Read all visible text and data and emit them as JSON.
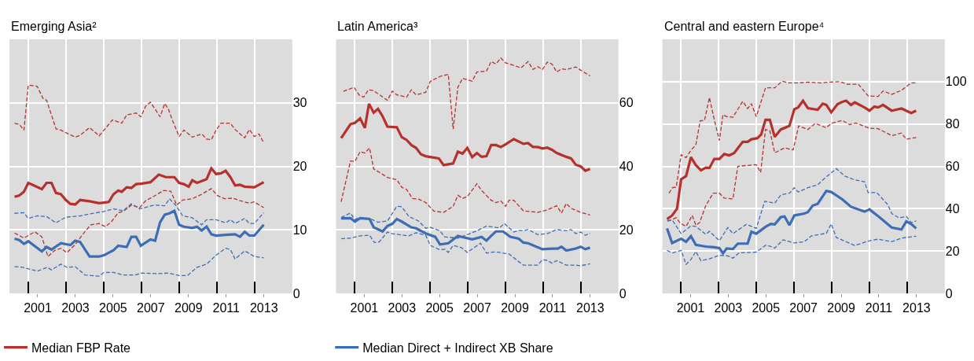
{
  "chart_data": [
    {
      "type": "line",
      "title": "Emerging Asia²",
      "xlim": [
        2000,
        2015
      ],
      "ylim": [
        0,
        40
      ],
      "xticks": [
        {
          "value": 2001,
          "label": null
        },
        {
          "value": 2003,
          "label": null
        },
        {
          "value": 2005,
          "label": null
        },
        {
          "value": 2007,
          "label": null
        },
        {
          "value": 2009,
          "label": null
        },
        {
          "value": 2011,
          "label": null
        },
        {
          "value": 2013,
          "label": null
        },
        {
          "value": 2001.5,
          "label": "2001"
        },
        {
          "value": 2003.5,
          "label": "2003"
        },
        {
          "value": 2005.5,
          "label": "2005"
        },
        {
          "value": 2007.5,
          "label": "2007"
        },
        {
          "value": 2009.5,
          "label": "2009"
        },
        {
          "value": 2011.5,
          "label": "2011"
        },
        {
          "value": 2013.5,
          "label": "2013"
        }
      ],
      "yticks": [
        0,
        10,
        20,
        30
      ],
      "grid": true,
      "legend": "bottom",
      "series": [
        {
          "color": "#b7312c",
          "line_style": "dashed",
          "x": [
            2000.27,
            2000.52,
            2000.77,
            2001.0,
            2001.47,
            2001.78,
            2001.97,
            2002.47,
            2002.73,
            2002.99,
            2003.49,
            2003.75,
            2004.25,
            2004.76,
            2005.46,
            2005.96,
            2006.22,
            2006.72,
            2006.97,
            2007.23,
            2007.48,
            2007.73,
            2007.99,
            2008.24,
            2008.43,
            2008.68,
            2009.0,
            2009.25,
            2009.7,
            2010.2,
            2010.46,
            2010.71,
            2010.96,
            2011.22,
            2011.72,
            2011.97,
            2012.48,
            2012.73,
            2012.99,
            2013.24,
            2013.49
          ],
          "values": [
            26.8,
            26.6,
            25.7,
            32.8,
            32.6,
            30.7,
            30.4,
            25.9,
            25.7,
            25.3,
            24.6,
            24.9,
            26.1,
            24.8,
            27.3,
            26.8,
            28.1,
            28.4,
            27.8,
            29.5,
            30.1,
            29.0,
            27.8,
            29.9,
            29.0,
            27.0,
            24.7,
            25.7,
            24.6,
            25.1,
            24.3,
            24.2,
            25.7,
            26.8,
            26.8,
            25.8,
            24.5,
            25.8,
            24.7,
            25.1,
            23.7
          ]
        },
        {
          "color": "#b7312c",
          "line_style": "dashed",
          "x": [
            2000.27,
            2000.77,
            2001.34,
            2001.72,
            2002.04,
            2002.42,
            2002.73,
            2003.05,
            2003.49,
            2003.94,
            2004.32,
            2004.76,
            2005.08,
            2005.39,
            2005.77,
            2006.03,
            2006.47,
            2006.91,
            2007.23,
            2007.67,
            2008.18,
            2008.56,
            2008.87,
            2009.19,
            2009.7,
            2010.2,
            2010.71,
            2011.03,
            2011.41,
            2011.85,
            2012.23,
            2012.73,
            2012.99,
            2013.49
          ],
          "values": [
            9.5,
            8.7,
            9.7,
            8.9,
            5.8,
            6.8,
            7.1,
            6.4,
            7.7,
            9.5,
            10.8,
            11.0,
            10.5,
            11.2,
            12.7,
            12.9,
            13.9,
            13.5,
            14.6,
            15.3,
            16.2,
            16.1,
            13.9,
            14.7,
            14.9,
            15.6,
            16.5,
            15.4,
            14.9,
            15.0,
            14.6,
            14.2,
            14.4,
            13.5
          ]
        },
        {
          "color": "#3d6db5",
          "line_style": "dashed",
          "x": [
            2000.27,
            2000.77,
            2001.0,
            2001.47,
            2001.97,
            2002.47,
            2002.99,
            2003.75,
            2004.25,
            2005.01,
            2005.52,
            2006.03,
            2006.47,
            2006.91,
            2007.67,
            2008.24,
            2008.49,
            2008.87,
            2009.19,
            2009.7,
            2010.2,
            2010.46,
            2010.96,
            2011.47,
            2011.72,
            2011.97,
            2012.48,
            2012.73,
            2012.99,
            2013.49
          ],
          "values": [
            12.6,
            12.7,
            11.8,
            12.2,
            12.1,
            11.1,
            12.0,
            12.2,
            12.5,
            12.9,
            13.3,
            13.0,
            14.1,
            13.3,
            13.9,
            13.8,
            14.9,
            13.7,
            12.2,
            11.9,
            10.8,
            11.6,
            11.6,
            11.1,
            11.6,
            11.0,
            11.8,
            11.0,
            11.0,
            12.7
          ]
        },
        {
          "color": "#3d6db5",
          "line_style": "dashed",
          "x": [
            2000.27,
            2000.71,
            2001.47,
            2002.0,
            2002.23,
            2002.73,
            2003.05,
            2003.49,
            2004.0,
            2004.76,
            2005.01,
            2005.52,
            2006.03,
            2006.66,
            2007.04,
            2007.92,
            2008.43,
            2009.0,
            2009.44,
            2009.95,
            2010.46,
            2010.96,
            2011.47,
            2011.72,
            2011.97,
            2012.48,
            2012.99,
            2013.49
          ],
          "values": [
            4.2,
            4.1,
            3.5,
            4.1,
            3.7,
            4.6,
            4.1,
            4.2,
            2.9,
            2.7,
            3.3,
            3.3,
            2.9,
            2.9,
            3.2,
            3.1,
            3.2,
            2.8,
            2.8,
            4.1,
            4.6,
            6.0,
            7.1,
            6.9,
            5.4,
            6.7,
            5.8,
            5.6
          ]
        },
        {
          "name": "Median FBP Rate",
          "color": "#b7312c",
          "line_style": "solid",
          "x": [
            2000.27,
            2000.52,
            2000.77,
            2001.0,
            2001.72,
            2001.97,
            2002.23,
            2002.47,
            2002.73,
            2002.99,
            2003.23,
            2003.49,
            2003.75,
            2004.25,
            2004.76,
            2005.27,
            2005.52,
            2005.77,
            2005.96,
            2006.22,
            2006.47,
            2006.72,
            2007.04,
            2007.48,
            2007.92,
            2008.3,
            2008.75,
            2009.0,
            2009.25,
            2009.51,
            2009.7,
            2009.95,
            2010.46,
            2010.71,
            2010.96,
            2011.22,
            2011.47,
            2011.72,
            2011.97,
            2012.23,
            2012.48,
            2012.99,
            2013.49
          ],
          "values": [
            15.2,
            15.4,
            16.0,
            17.4,
            16.4,
            17.4,
            17.4,
            15.8,
            15.6,
            14.7,
            14.1,
            14.0,
            14.7,
            14.5,
            14.2,
            14.4,
            15.6,
            16.2,
            16.0,
            16.7,
            16.6,
            17.2,
            17.3,
            17.5,
            18.7,
            18.3,
            18.3,
            17.4,
            17.2,
            16.8,
            17.8,
            17.4,
            18.0,
            19.7,
            18.8,
            18.9,
            19.3,
            18.3,
            17.0,
            17.1,
            16.8,
            16.7,
            17.5
          ]
        },
        {
          "name": "Median Direct + Indirect XB Share",
          "color": "#3d6db5",
          "line_style": "solid",
          "x": [
            2000.27,
            2000.52,
            2000.77,
            2001.0,
            2001.72,
            2001.97,
            2002.23,
            2002.73,
            2003.23,
            2003.49,
            2003.75,
            2004.25,
            2004.76,
            2005.01,
            2005.52,
            2005.77,
            2006.22,
            2006.47,
            2006.72,
            2006.97,
            2007.48,
            2007.73,
            2007.99,
            2008.24,
            2008.49,
            2008.75,
            2009.0,
            2009.25,
            2009.7,
            2009.95,
            2010.2,
            2010.46,
            2010.71,
            2010.96,
            2011.47,
            2011.97,
            2012.23,
            2012.48,
            2012.73,
            2012.99,
            2013.49
          ],
          "values": [
            8.6,
            8.4,
            7.8,
            8.2,
            6.6,
            7.3,
            6.9,
            7.9,
            7.6,
            8.3,
            8.1,
            5.8,
            5.8,
            6.0,
            6.8,
            7.5,
            7.3,
            8.9,
            8.9,
            7.5,
            8.5,
            8.3,
            11.2,
            12.4,
            12.6,
            13.0,
            10.8,
            10.5,
            10.3,
            10.5,
            9.9,
            10.5,
            9.3,
            9.1,
            9.2,
            9.3,
            8.9,
            9.7,
            9.1,
            9.1,
            10.8
          ]
        }
      ]
    },
    {
      "type": "line",
      "title": "Latin America³",
      "xlim": [
        2000,
        2015
      ],
      "ylim": [
        0,
        80
      ],
      "xticks": [
        {
          "value": 2001,
          "label": null
        },
        {
          "value": 2003,
          "label": null
        },
        {
          "value": 2005,
          "label": null
        },
        {
          "value": 2007,
          "label": null
        },
        {
          "value": 2009,
          "label": null
        },
        {
          "value": 2011,
          "label": null
        },
        {
          "value": 2013,
          "label": null
        },
        {
          "value": 2001.5,
          "label": "2001"
        },
        {
          "value": 2003.5,
          "label": "2003"
        },
        {
          "value": 2005.5,
          "label": "2005"
        },
        {
          "value": 2007.5,
          "label": "2007"
        },
        {
          "value": 2009.5,
          "label": "2009"
        },
        {
          "value": 2011.5,
          "label": "2011"
        },
        {
          "value": 2013.5,
          "label": "2013"
        }
      ],
      "yticks": [
        0,
        20,
        40,
        60
      ],
      "grid": true,
      "series": [
        {
          "color": "#b7312c",
          "line_style": "dashed",
          "x": [
            2000.39,
            2000.96,
            2001.22,
            2001.47,
            2001.72,
            2001.97,
            2002.73,
            2002.99,
            2003.23,
            2003.75,
            2004.0,
            2004.25,
            2004.76,
            2005.01,
            2005.52,
            2005.96,
            2006.22,
            2006.47,
            2006.72,
            2007.23,
            2007.48,
            2007.99,
            2008.24,
            2008.49,
            2008.75,
            2009.0,
            2009.44,
            2009.82,
            2010.2,
            2010.46,
            2010.71,
            2010.96,
            2011.22,
            2011.47,
            2011.72,
            2011.97,
            2012.23,
            2012.73,
            2012.99,
            2013.49
          ],
          "values": [
            63.6,
            64.9,
            62.5,
            61.8,
            64.1,
            63.9,
            60.8,
            63.7,
            62.5,
            61.8,
            64.1,
            62.5,
            63.3,
            66.8,
            68.3,
            69.0,
            51.7,
            64.9,
            67.7,
            66.8,
            69.7,
            70.0,
            73.0,
            72.2,
            74.1,
            72.6,
            71.8,
            71.0,
            73.0,
            70.5,
            71.4,
            70.5,
            72.8,
            72.2,
            69.7,
            70.7,
            70.5,
            71.3,
            70.3,
            68.5
          ]
        },
        {
          "color": "#b7312c",
          "line_style": "dashed",
          "x": [
            2000.27,
            2000.77,
            2001.0,
            2001.28,
            2001.53,
            2001.78,
            2002.0,
            2002.47,
            2002.73,
            2003.23,
            2003.49,
            2003.75,
            2004.06,
            2004.38,
            2004.76,
            2005.2,
            2005.71,
            2006.22,
            2006.47,
            2006.72,
            2006.97,
            2007.48,
            2007.73,
            2008.24,
            2008.49,
            2008.75,
            2009.0,
            2009.19,
            2009.44,
            2009.95,
            2010.71,
            2011.22,
            2011.72,
            2011.97,
            2012.23,
            2012.48,
            2012.99,
            2013.49
          ],
          "values": [
            28.8,
            41.7,
            41.5,
            44.6,
            44.2,
            45.8,
            39.2,
            37.5,
            36.5,
            35.8,
            33.4,
            32.7,
            29.9,
            29.7,
            28.6,
            25.9,
            25.5,
            27.4,
            30.9,
            29.9,
            30.5,
            34.5,
            32.4,
            29.3,
            28.6,
            29.1,
            27.4,
            29.3,
            29.3,
            26.0,
            25.5,
            26.3,
            27.6,
            25.3,
            28.3,
            26.8,
            25.5,
            24.7
          ]
        },
        {
          "color": "#3d6db5",
          "line_style": "dashed",
          "x": [
            2000.27,
            2000.77,
            2001.0,
            2001.22,
            2001.78,
            2002.23,
            2002.73,
            2003.23,
            2003.49,
            2003.87,
            2004.38,
            2004.76,
            2005.01,
            2005.52,
            2005.77,
            2006.47,
            2006.97,
            2007.48,
            2007.99,
            2008.68,
            2008.94,
            2009.44,
            2009.7,
            2009.95,
            2010.2,
            2010.71,
            2011.22,
            2011.72,
            2012.23,
            2012.48,
            2012.73,
            2012.99,
            2013.24,
            2013.49
          ],
          "values": [
            23.9,
            25.3,
            23.2,
            23.9,
            23.6,
            22.4,
            22.8,
            27.4,
            27.3,
            24.2,
            22.8,
            20.5,
            20.8,
            19.7,
            17.8,
            17.4,
            18.5,
            19.7,
            21.2,
            20.6,
            22.0,
            19.3,
            19.8,
            19.8,
            20.1,
            18.5,
            18.8,
            20.1,
            19.7,
            20.1,
            18.8,
            19.3,
            18.3,
            18.9
          ]
        },
        {
          "color": "#3d6db5",
          "line_style": "dashed",
          "x": [
            2000.27,
            2000.77,
            2001.28,
            2001.78,
            2002.04,
            2002.29,
            2002.73,
            2002.99,
            2003.87,
            2004.25,
            2004.76,
            2005.01,
            2005.52,
            2005.77,
            2005.96,
            2006.22,
            2006.66,
            2006.97,
            2007.67,
            2007.99,
            2008.49,
            2008.94,
            2009.19,
            2009.7,
            2009.95,
            2010.71,
            2010.96,
            2011.22,
            2011.47,
            2011.72,
            2012.23,
            2012.73,
            2012.99,
            2013.49
          ],
          "values": [
            17.2,
            17.4,
            18.1,
            18.3,
            16.0,
            16.2,
            19.3,
            18.8,
            18.1,
            19.1,
            18.3,
            15.1,
            13.7,
            13.9,
            12.9,
            15.1,
            14.4,
            12.9,
            15.8,
            12.7,
            13.1,
            12.6,
            12.4,
            10.0,
            8.9,
            8.9,
            10.6,
            10.4,
            9.5,
            10.3,
            8.9,
            8.9,
            8.7,
            9.3
          ]
        },
        {
          "color": "#b7312c",
          "line_style": "solid",
          "x": [
            2000.27,
            2000.77,
            2001.0,
            2001.28,
            2001.53,
            2001.75,
            2002.0,
            2002.23,
            2002.47,
            2002.73,
            2003.23,
            2003.49,
            2003.75,
            2004.0,
            2004.25,
            2004.51,
            2004.76,
            2005.46,
            2005.71,
            2006.22,
            2006.47,
            2006.72,
            2006.97,
            2007.23,
            2007.48,
            2007.73,
            2007.99,
            2008.24,
            2008.49,
            2008.75,
            2009.0,
            2009.44,
            2009.95,
            2010.2,
            2010.46,
            2010.71,
            2010.96,
            2011.22,
            2011.47,
            2011.72,
            2012.23,
            2012.48,
            2012.73,
            2012.99,
            2013.24,
            2013.49
          ],
          "values": [
            48.9,
            53.3,
            53.7,
            55.1,
            52.1,
            59.7,
            56.9,
            58.1,
            55.8,
            52.5,
            52.3,
            49.2,
            48.3,
            46.7,
            45.8,
            43.8,
            43.2,
            42.5,
            40.4,
            40.9,
            44.6,
            44.0,
            45.8,
            42.9,
            44.2,
            43.0,
            43.2,
            46.7,
            46.7,
            46.1,
            46.9,
            48.6,
            47.1,
            47.3,
            46.1,
            46.1,
            45.6,
            45.9,
            45.2,
            44.2,
            43.0,
            42.5,
            40.5,
            40.0,
            38.6,
            39.2
          ]
        },
        {
          "color": "#3d6db5",
          "line_style": "solid",
          "x": [
            2000.27,
            2000.77,
            2001.0,
            2001.28,
            2001.78,
            2002.0,
            2002.47,
            2002.73,
            2002.99,
            2003.23,
            2003.49,
            2004.0,
            2004.25,
            2004.76,
            2005.27,
            2005.52,
            2005.96,
            2006.47,
            2007.23,
            2007.73,
            2007.99,
            2008.24,
            2008.49,
            2008.87,
            2009.25,
            2009.7,
            2009.95,
            2010.2,
            2010.96,
            2011.47,
            2011.78,
            2011.97,
            2012.23,
            2012.73,
            2012.99,
            2013.24,
            2013.49
          ],
          "values": [
            23.6,
            23.7,
            22.6,
            23.7,
            23.4,
            20.8,
            19.5,
            21.2,
            21.9,
            23.4,
            22.6,
            20.8,
            20.5,
            18.9,
            17.8,
            15.4,
            15.8,
            18.1,
            17.0,
            17.8,
            16.6,
            18.1,
            19.5,
            19.5,
            17.8,
            17.2,
            16.0,
            15.8,
            13.9,
            14.1,
            14.1,
            14.7,
            13.5,
            14.1,
            14.7,
            13.9,
            14.4
          ]
        }
      ]
    },
    {
      "type": "line",
      "title": "Central and eastern Europe⁴",
      "xlim": [
        2000,
        2015
      ],
      "ylim": [
        0,
        120
      ],
      "xticks": [
        {
          "value": 2001,
          "label": null
        },
        {
          "value": 2003,
          "label": null
        },
        {
          "value": 2005,
          "label": null
        },
        {
          "value": 2007,
          "label": null
        },
        {
          "value": 2009,
          "label": null
        },
        {
          "value": 2011,
          "label": null
        },
        {
          "value": 2013,
          "label": null
        },
        {
          "value": 2001.5,
          "label": "2001"
        },
        {
          "value": 2003.5,
          "label": "2003"
        },
        {
          "value": 2005.5,
          "label": "2005"
        },
        {
          "value": 2007.5,
          "label": "2007"
        },
        {
          "value": 2009.5,
          "label": "2009"
        },
        {
          "value": 2011.5,
          "label": "2011"
        },
        {
          "value": 2013.5,
          "label": "2013"
        }
      ],
      "yticks": [
        0,
        20,
        40,
        60,
        80,
        100
      ],
      "grid": true,
      "series": [
        {
          "color": "#b7312c",
          "line_style": "dashed",
          "x": [
            2000.35,
            2000.54,
            2000.74,
            2001.0,
            2001.26,
            2001.52,
            2001.78,
            2002.01,
            2002.24,
            2002.5,
            2002.76,
            2003.03,
            2003.22,
            2003.42,
            2003.75,
            2004.27,
            2004.53,
            2004.73,
            2004.99,
            2005.25,
            2005.48,
            2005.97,
            2006.36,
            2006.75,
            2007.21,
            2007.73,
            2008.39,
            2008.91,
            2009.43,
            2009.82,
            2010.41,
            2010.93,
            2011.46,
            2011.72,
            2012.18,
            2012.7,
            2013.22,
            2013.48
          ],
          "values": [
            47.3,
            49.9,
            50.2,
            65.5,
            64.1,
            67.6,
            70.1,
            81.5,
            81.7,
            92.5,
            82.0,
            72.2,
            84.4,
            83.5,
            83.2,
            90.7,
            87.3,
            89.6,
            83.5,
            90.7,
            97.1,
            97.1,
            100.2,
            99.4,
            99.4,
            99.8,
            99.4,
            99.8,
            100.0,
            98.8,
            98.8,
            93.3,
            93.0,
            95.6,
            94.0,
            95.9,
            99.4,
            99.4
          ]
        },
        {
          "color": "#b7312c",
          "line_style": "dashed",
          "x": [
            2000.28,
            2000.74,
            2000.93,
            2001.26,
            2001.59,
            2001.78,
            2001.98,
            2002.31,
            2002.7,
            2003.03,
            2003.29,
            2003.75,
            2004.01,
            2004.46,
            2004.99,
            2005.22,
            2005.48,
            2005.71,
            2005.97,
            2006.49,
            2006.95,
            2007.24,
            2007.73,
            2008.12,
            2008.71,
            2008.97,
            2009.56,
            2009.95,
            2010.28,
            2011.0,
            2011.46,
            2012.18,
            2012.7,
            2012.96,
            2013.48
          ],
          "values": [
            34.0,
            35.7,
            33.4,
            31.6,
            36.8,
            32.2,
            33.4,
            41.5,
            47.3,
            47.3,
            45.0,
            44.6,
            60.0,
            60.4,
            60.8,
            57.1,
            77.4,
            76.8,
            66.4,
            68.7,
            67.8,
            79.1,
            77.4,
            80.3,
            78.2,
            80.3,
            81.7,
            79.7,
            80.5,
            78.0,
            77.8,
            74.5,
            75.7,
            72.8,
            73.6
          ]
        },
        {
          "color": "#3d6db5",
          "line_style": "dashed",
          "x": [
            2000.25,
            2000.54,
            2001.0,
            2001.52,
            2001.78,
            2002.31,
            2002.5,
            2003.03,
            2003.48,
            2003.75,
            2004.46,
            2004.99,
            2005.44,
            2005.97,
            2006.29,
            2006.75,
            2007.01,
            2007.21,
            2007.73,
            2008.25,
            2008.65,
            2009.24,
            2009.69,
            2010.22,
            2010.74,
            2010.93,
            2011.39,
            2011.98,
            2012.18,
            2012.57,
            2012.96,
            2013.22,
            2013.48
          ],
          "values": [
            34.5,
            34.5,
            28.2,
            31.9,
            31.6,
            27.9,
            29.3,
            24.9,
            31.1,
            28.2,
            32.6,
            30.7,
            43.5,
            42.6,
            46.5,
            47.3,
            49.9,
            47.9,
            49.9,
            51.3,
            54.6,
            58.9,
            55.4,
            53.6,
            52.7,
            47.6,
            47.6,
            41.8,
            37.7,
            35.7,
            36.3,
            33.4,
            34.2
          ]
        },
        {
          "color": "#3d6db5",
          "line_style": "dashed",
          "x": [
            2000.25,
            2000.54,
            2001.0,
            2001.26,
            2001.52,
            2001.78,
            2002.05,
            2002.5,
            2003.03,
            2003.48,
            2003.75,
            2004.07,
            2004.99,
            2005.51,
            2005.97,
            2006.42,
            2007.01,
            2007.54,
            2007.93,
            2008.71,
            2008.97,
            2009.24,
            2010.22,
            2010.93,
            2011.46,
            2012.18,
            2012.7,
            2013.48
          ],
          "values": [
            20.3,
            19.1,
            20.3,
            13.7,
            16.0,
            19.8,
            15.4,
            16.3,
            18.0,
            17.7,
            16.6,
            19.1,
            19.5,
            22.9,
            21.4,
            25.3,
            23.8,
            24.4,
            27.2,
            28.4,
            32.8,
            26.4,
            22.6,
            24.7,
            25.6,
            24.4,
            26.1,
            27.0
          ]
        },
        {
          "color": "#b7312c",
          "line_style": "solid",
          "x": [
            2000.25,
            2000.52,
            2000.78,
            2001.0,
            2001.26,
            2001.52,
            2001.78,
            2002.05,
            2002.31,
            2002.5,
            2002.76,
            2003.03,
            2003.29,
            2003.55,
            2003.81,
            2004.27,
            2004.53,
            2004.73,
            2005.05,
            2005.25,
            2005.48,
            2005.71,
            2005.97,
            2006.29,
            2006.75,
            2007.01,
            2007.21,
            2007.47,
            2007.73,
            2008.25,
            2008.52,
            2008.71,
            2008.97,
            2009.3,
            2009.56,
            2009.76,
            2010.02,
            2010.22,
            2010.74,
            2011.0,
            2011.26,
            2011.46,
            2011.72,
            2012.18,
            2012.7,
            2013.22,
            2013.48
          ],
          "values": [
            35.1,
            36.8,
            40.0,
            53.9,
            55.4,
            64.3,
            60.6,
            58.1,
            59.4,
            59.2,
            63.5,
            63.5,
            65.8,
            65.2,
            66.2,
            71.6,
            71.6,
            72.8,
            73.3,
            75.1,
            82.0,
            82.0,
            73.9,
            77.4,
            79.1,
            87.0,
            87.8,
            91.0,
            87.5,
            86.7,
            89.6,
            89.0,
            85.5,
            89.3,
            90.5,
            91.0,
            89.0,
            90.2,
            87.8,
            86.3,
            88.2,
            87.8,
            89.0,
            86.3,
            87.3,
            85.2,
            86.3
          ]
        },
        {
          "color": "#3d6db5",
          "line_style": "solid",
          "x": [
            2000.25,
            2000.52,
            2001.0,
            2001.26,
            2001.52,
            2001.78,
            2002.31,
            2002.76,
            2003.03,
            2003.22,
            2003.42,
            2003.75,
            2004.01,
            2004.53,
            2004.73,
            2004.99,
            2005.51,
            2005.77,
            2005.97,
            2006.29,
            2006.49,
            2006.75,
            2007.01,
            2007.54,
            2007.73,
            2007.99,
            2008.25,
            2008.71,
            2008.97,
            2009.56,
            2010.02,
            2010.74,
            2011.0,
            2011.52,
            2012.18,
            2012.7,
            2012.96,
            2013.22,
            2013.48
          ],
          "values": [
            30.7,
            23.8,
            25.8,
            24.4,
            27.0,
            22.9,
            22.1,
            21.8,
            21.4,
            18.9,
            21.2,
            21.0,
            23.5,
            23.5,
            29.1,
            28.2,
            31.6,
            32.8,
            32.6,
            36.0,
            36.3,
            32.2,
            36.8,
            37.7,
            38.4,
            41.5,
            42.3,
            48.4,
            47.9,
            44.4,
            40.9,
            38.6,
            39.7,
            36.0,
            31.1,
            30.2,
            34.0,
            32.8,
            30.7
          ]
        }
      ]
    }
  ]
}
